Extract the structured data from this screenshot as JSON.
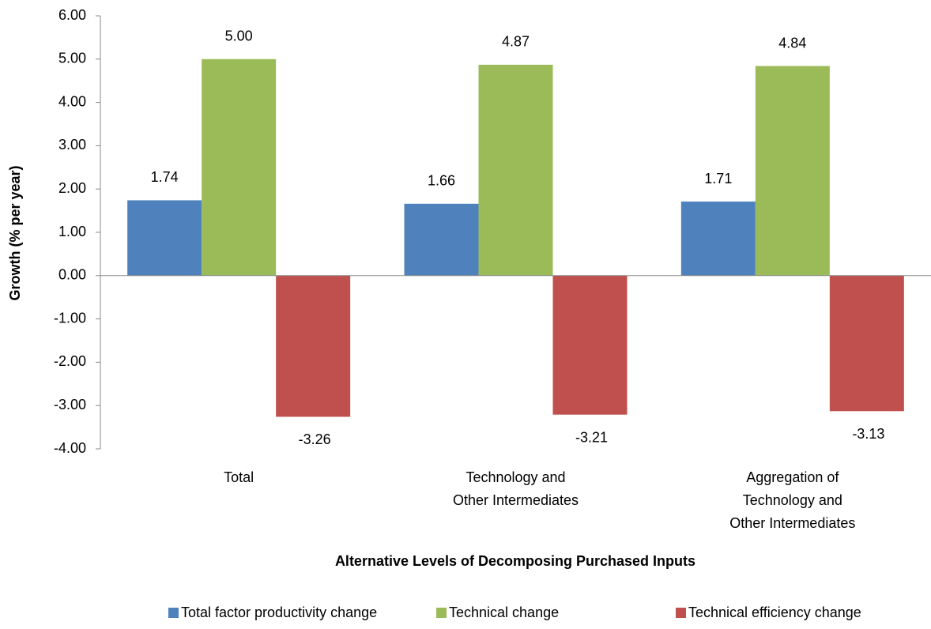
{
  "chart_data": {
    "type": "bar",
    "ylabel": "Growth (% per year)",
    "xlabel": "Alternative Levels of Decomposing Purchased Inputs",
    "categories": [
      "Total",
      "Technology and\nOther Intermediates",
      "Aggregation of\nTechnology and\nOther Intermediates"
    ],
    "series": [
      {
        "name": "Total factor productivity change",
        "color": "#4f81bd",
        "values": [
          1.74,
          1.66,
          1.71
        ],
        "value_labels": [
          "1.74",
          "1.66",
          "1.71"
        ]
      },
      {
        "name": "Technical change",
        "color": "#9bbb59",
        "values": [
          5,
          4.87,
          4.84
        ],
        "value_labels": [
          "5.00",
          "4.87",
          "4.84"
        ]
      },
      {
        "name": "Technical efficiency change",
        "color": "#c0504d",
        "values": [
          -3.26,
          -3.21,
          -3.13
        ],
        "value_labels": [
          "-3.26",
          "-3.21",
          "-3.13"
        ]
      }
    ],
    "ylim": [
      -4,
      6
    ],
    "yticks": [
      {
        "value": -4,
        "label": "-4.00"
      },
      {
        "value": -3,
        "label": "-3.00"
      },
      {
        "value": -2,
        "label": "-2.00"
      },
      {
        "value": -1,
        "label": "-1.00"
      },
      {
        "value": 0,
        "label": "0.00"
      },
      {
        "value": 1,
        "label": "1.00"
      },
      {
        "value": 2,
        "label": "2.00"
      },
      {
        "value": 3,
        "label": "3.00"
      },
      {
        "value": 4,
        "label": "4.00"
      },
      {
        "value": 5,
        "label": "5.00"
      },
      {
        "value": 6,
        "label": "6.00"
      }
    ],
    "grid": false,
    "legend": "bottom"
  }
}
